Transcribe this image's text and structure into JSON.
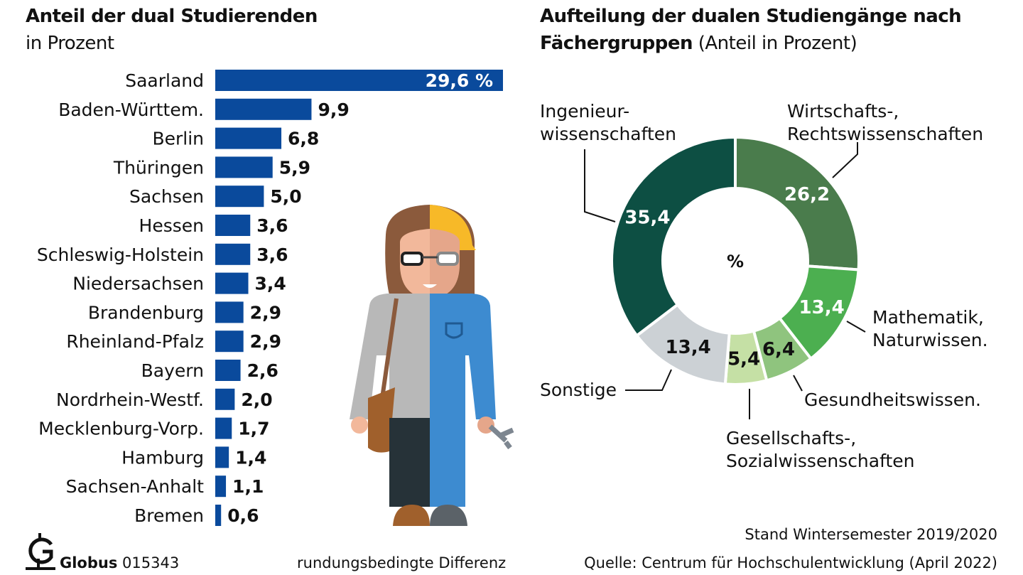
{
  "left": {
    "title": "Anteil der dual Studierenden",
    "subtitle": "in Prozent"
  },
  "right": {
    "title": "Aufteilung der dualen Studiengänge nach",
    "title2": "Fächergruppen",
    "title_suffix": "(Anteil in Prozent)",
    "center_label": "%"
  },
  "footer": {
    "logo": "Globus",
    "code": "015343",
    "note": "rundungsbedingte Differenz",
    "stand": "Stand Wintersemester 2019/2020",
    "source": "Quelle: Centrum für Hochschulentwicklung (April 2022)"
  },
  "chart_data": [
    {
      "type": "bar",
      "orientation": "horizontal",
      "title": "Anteil der dual Studierenden",
      "subtitle": "in Prozent",
      "categories": [
        "Saarland",
        "Baden-Württem.",
        "Berlin",
        "Thüringen",
        "Sachsen",
        "Hessen",
        "Schleswig-Holstein",
        "Niedersachsen",
        "Brandenburg",
        "Rheinland-Pfalz",
        "Bayern",
        "Nordrhein-Westf.",
        "Mecklenburg-Vorp.",
        "Hamburg",
        "Sachsen-Anhalt",
        "Bremen"
      ],
      "values": [
        29.6,
        9.9,
        6.8,
        5.9,
        5.0,
        3.6,
        3.6,
        3.4,
        2.9,
        2.9,
        2.6,
        2.0,
        1.7,
        1.4,
        1.1,
        0.6
      ],
      "labels": [
        "29,6 %",
        "9,9",
        "6,8",
        "5,9",
        "5,0",
        "3,6",
        "3,6",
        "3,4",
        "2,9",
        "2,9",
        "2,6",
        "2,0",
        "1,7",
        "1,4",
        "1,1",
        "0,6"
      ],
      "color": "#0a4a9c"
    },
    {
      "type": "pie",
      "variant": "donut",
      "title": "Aufteilung der dualen Studiengänge nach Fächergruppen (Anteil in Prozent)",
      "center_label": "%",
      "slices": [
        {
          "name": "Wirtschafts-, Rechtswissenschaften",
          "lines": [
            "Wirtschafts-,",
            "Rechtswissenschaften"
          ],
          "value": 26.2,
          "label": "26,2",
          "color": "#4a7c4c",
          "text_color": "#ffffff"
        },
        {
          "name": "Mathematik, Naturwissen.",
          "lines": [
            "Mathematik,",
            "Naturwissen."
          ],
          "value": 13.4,
          "label": "13,4",
          "color": "#4caf50",
          "text_color": "#ffffff"
        },
        {
          "name": "Gesundheitswissen.",
          "lines": [
            "Gesundheitswissen."
          ],
          "value": 6.4,
          "label": "6,4",
          "color": "#8fc47e",
          "text_color": "#111111"
        },
        {
          "name": "Gesellschafts-, Sozialwissenschaften",
          "lines": [
            "Gesellschafts-,",
            "Sozialwissenschaften"
          ],
          "value": 5.4,
          "label": "5,4",
          "color": "#c5e0a5",
          "text_color": "#111111"
        },
        {
          "name": "Sonstige",
          "lines": [
            "Sonstige"
          ],
          "value": 13.4,
          "label": "13,4",
          "color": "#ccd1d5",
          "text_color": "#111111"
        },
        {
          "name": "Ingenieurwissenschaften",
          "lines": [
            "Ingenieur-",
            "wissenschaften"
          ],
          "value": 35.4,
          "label": "35,4",
          "color": "#0d4f43",
          "text_color": "#ffffff"
        }
      ]
    }
  ]
}
